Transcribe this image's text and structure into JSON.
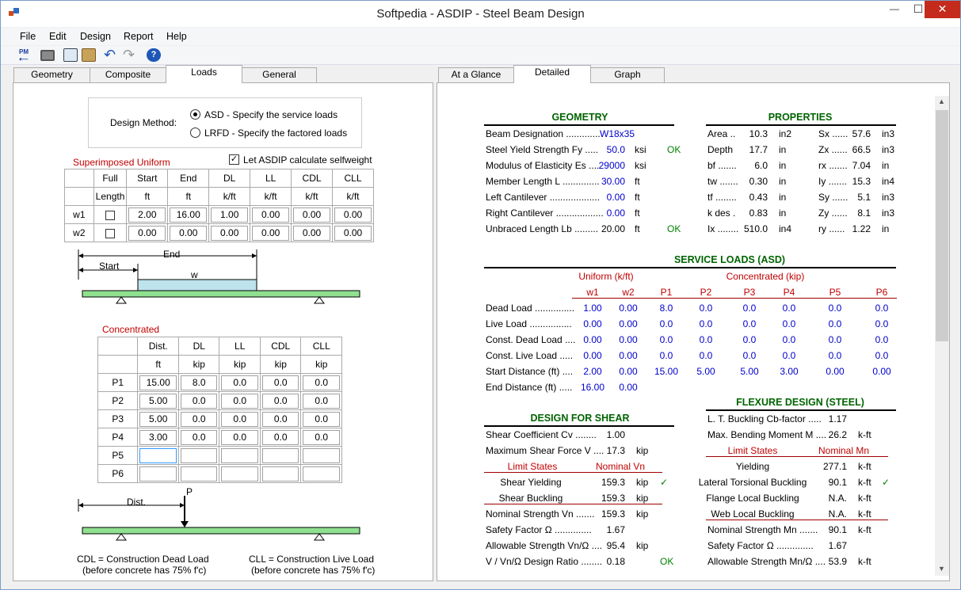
{
  "window": {
    "title": "Softpedia - ASDIP - Steel Beam Design",
    "minimize": "—",
    "maximize": "☐",
    "close": "✕"
  },
  "menu": [
    "File",
    "Edit",
    "Design",
    "Report",
    "Help"
  ],
  "toolbar_icons": [
    "pm-icon",
    "print-icon",
    "copy-icon",
    "paste-icon",
    "undo-icon",
    "redo-icon",
    "help-icon"
  ],
  "left_tabs": [
    "Geometry",
    "Composite",
    "Loads",
    "General"
  ],
  "right_tabs": [
    "At a Glance",
    "Detailed",
    "Graph"
  ],
  "loads": {
    "design_method_label": "Design Method:",
    "asd_label": "ASD - Specify the service loads",
    "lrfd_label": "LRFD - Specify the factored loads",
    "uniform_title": "Superimposed Uniform",
    "selfweight_label": "Let ASDIP calculate selfweight",
    "uniform_headers_top": [
      "",
      "Full",
      "Start",
      "End",
      "DL",
      "LL",
      "CDL",
      "CLL"
    ],
    "uniform_headers_units": [
      "",
      "Length",
      "ft",
      "ft",
      "k/ft",
      "k/ft",
      "k/ft",
      "k/ft"
    ],
    "uniform_rows": [
      {
        "name": "w1",
        "start": "2.00",
        "end": "16.00",
        "dl": "1.00",
        "ll": "0.00",
        "cdl": "0.00",
        "cll": "0.00"
      },
      {
        "name": "w2",
        "start": "0.00",
        "end": "0.00",
        "dl": "0.00",
        "ll": "0.00",
        "cdl": "0.00",
        "cll": "0.00"
      }
    ],
    "diagram1": {
      "end": "End",
      "start": "Start",
      "w": "w"
    },
    "conc_title": "Concentrated",
    "conc_headers_top": [
      "",
      "Dist.",
      "DL",
      "LL",
      "CDL",
      "CLL"
    ],
    "conc_headers_units": [
      "",
      "ft",
      "kip",
      "kip",
      "kip",
      "kip"
    ],
    "conc_rows": [
      {
        "name": "P1",
        "vals": [
          "15.00",
          "8.0",
          "0.0",
          "0.0",
          "0.0"
        ]
      },
      {
        "name": "P2",
        "vals": [
          "5.00",
          "0.0",
          "0.0",
          "0.0",
          "0.0"
        ]
      },
      {
        "name": "P3",
        "vals": [
          "5.00",
          "0.0",
          "0.0",
          "0.0",
          "0.0"
        ]
      },
      {
        "name": "P4",
        "vals": [
          "3.00",
          "0.0",
          "0.0",
          "0.0",
          "0.0"
        ]
      },
      {
        "name": "P5",
        "vals": [
          "",
          "",
          "",
          "",
          ""
        ]
      },
      {
        "name": "P6",
        "vals": [
          "",
          "",
          "",
          "",
          ""
        ]
      }
    ],
    "diagram2": {
      "dist": "Dist.",
      "p": "P"
    },
    "note_cdl": "CDL = Construction Dead Load",
    "note_cdl2": "(before concrete has 75% f'c)",
    "note_cll": "CLL = Construction Live Load",
    "note_cll2": "(before concrete has 75% f'c)"
  },
  "report": {
    "geometry_title": "GEOMETRY",
    "geometry": [
      {
        "label": "Beam Designation  .............",
        "value": "W18x35",
        "unit": "",
        "status": ""
      },
      {
        "label": "Steel Yield Strength  Fy  .....",
        "value": "50.0",
        "unit": "ksi",
        "status": "OK"
      },
      {
        "label": "Modulus of Elasticity  Es  ....",
        "value": "29000",
        "unit": "ksi",
        "status": ""
      },
      {
        "label": "Member Length  L  ..............",
        "value": "30.00",
        "unit": "ft",
        "status": ""
      },
      {
        "label": "Left Cantilever  ...................",
        "value": "0.00",
        "unit": "ft",
        "status": ""
      },
      {
        "label": "Right Cantilever  ..................",
        "value": "0.00",
        "unit": "ft",
        "status": ""
      },
      {
        "label": "Unbraced Length  Lb  .........",
        "value": "20.00",
        "unit": "ft",
        "status": "OK"
      }
    ],
    "properties_title": "PROPERTIES",
    "properties": [
      [
        "Area  ..",
        "10.3",
        "in2",
        "Sx  ......",
        "57.6",
        "in3"
      ],
      [
        "Depth",
        "17.7",
        "in",
        "Zx  ......",
        "66.5",
        "in3"
      ],
      [
        "bf  .......",
        "6.0",
        "in",
        "rx  .......",
        "7.04",
        "in"
      ],
      [
        "tw  .......",
        "0.30",
        "in",
        "Iy  .......",
        "15.3",
        "in4"
      ],
      [
        "tf  ........",
        "0.43",
        "in",
        "Sy  ......",
        "5.1",
        "in3"
      ],
      [
        "k des  .",
        "0.83",
        "in",
        "Zy  ......",
        "8.1",
        "in3"
      ],
      [
        "Ix  ........",
        "510.0",
        "in4",
        "ry  ......",
        "1.22",
        "in"
      ]
    ],
    "service_title": "SERVICE LOADS (ASD)",
    "service_group_uniform": "Uniform (k/ft)",
    "service_group_conc": "Concentrated (kip)",
    "service_cols": [
      "w1",
      "w2",
      "P1",
      "P2",
      "P3",
      "P4",
      "P5",
      "P6"
    ],
    "service_rows": [
      {
        "label": "Dead Load  ...............",
        "vals": [
          "1.00",
          "0.00",
          "8.0",
          "0.0",
          "0.0",
          "0.0",
          "0.0",
          "0.0"
        ]
      },
      {
        "label": "Live Load  ................",
        "vals": [
          "0.00",
          "0.00",
          "0.0",
          "0.0",
          "0.0",
          "0.0",
          "0.0",
          "0.0"
        ]
      },
      {
        "label": "Const. Dead Load  ....",
        "vals": [
          "0.00",
          "0.00",
          "0.0",
          "0.0",
          "0.0",
          "0.0",
          "0.0",
          "0.0"
        ]
      },
      {
        "label": "Const. Live Load  .....",
        "vals": [
          "0.00",
          "0.00",
          "0.0",
          "0.0",
          "0.0",
          "0.0",
          "0.0",
          "0.0"
        ]
      },
      {
        "label": "Start Distance (ft)  ....",
        "vals": [
          "2.00",
          "0.00",
          "15.00",
          "5.00",
          "5.00",
          "3.00",
          "0.00",
          "0.00"
        ]
      },
      {
        "label": "End Distance (ft)  .....",
        "vals": [
          "16.00",
          "0.00",
          "",
          "",
          "",
          "",
          "",
          ""
        ]
      }
    ],
    "shear_title": "DESIGN FOR SHEAR",
    "shear_coef": {
      "label": "Shear Coefficient  Cv  ........",
      "value": "1.00"
    },
    "shear_max": {
      "label": "Maximum Shear Force  V  ....",
      "value": "17.3",
      "unit": "kip"
    },
    "shear_limit_hdr": "Limit States",
    "shear_nominal_hdr": "Nominal Vn",
    "shear_limits": [
      {
        "label": "Shear Yielding",
        "value": "159.3",
        "unit": "kip",
        "check": "✓"
      },
      {
        "label": "Shear Buckling",
        "value": "159.3",
        "unit": "kip",
        "check": ""
      }
    ],
    "shear_tail": [
      {
        "label": "Nominal Strength  Vn  .......",
        "value": "159.3",
        "unit": "kip",
        "status": ""
      },
      {
        "label": "Safety Factor  Ω  ..............",
        "value": "1.67",
        "unit": "",
        "status": ""
      },
      {
        "label": "Allowable Strength  Vn/Ω  ....",
        "value": "95.4",
        "unit": "kip",
        "status": ""
      },
      {
        "label": "V / Vn/Ω Design Ratio  ........",
        "value": "0.18",
        "unit": "",
        "status": "OK"
      }
    ],
    "flex_title": "FLEXURE DESIGN (STEEL)",
    "flex_top": [
      {
        "label": "L. T. Buckling Cb-factor  .....",
        "value": "1.17",
        "unit": ""
      },
      {
        "label": "Max. Bending Moment  M  ....",
        "value": "26.2",
        "unit": "k-ft"
      }
    ],
    "flex_limit_hdr": "Limit States",
    "flex_nominal_hdr": "Nominal Mn",
    "flex_limits": [
      {
        "label": "Yielding",
        "value": "277.1",
        "unit": "k-ft",
        "check": ""
      },
      {
        "label": "Lateral Torsional Buckling",
        "value": "90.1",
        "unit": "k-ft",
        "check": "✓"
      },
      {
        "label": "Flange Local Buckling",
        "value": "N.A.",
        "unit": "k-ft",
        "check": ""
      },
      {
        "label": "Web Local Buckling",
        "value": "N.A.",
        "unit": "k-ft",
        "check": ""
      }
    ],
    "flex_tail": [
      {
        "label": "Nominal Strength  Mn  .......",
        "value": "90.1",
        "unit": "k-ft"
      },
      {
        "label": "Safety Factor  Ω  ..............",
        "value": "1.67",
        "unit": ""
      },
      {
        "label": "Allowable Strength  Mn/Ω  ....",
        "value": "53.9",
        "unit": "k-ft"
      }
    ]
  }
}
